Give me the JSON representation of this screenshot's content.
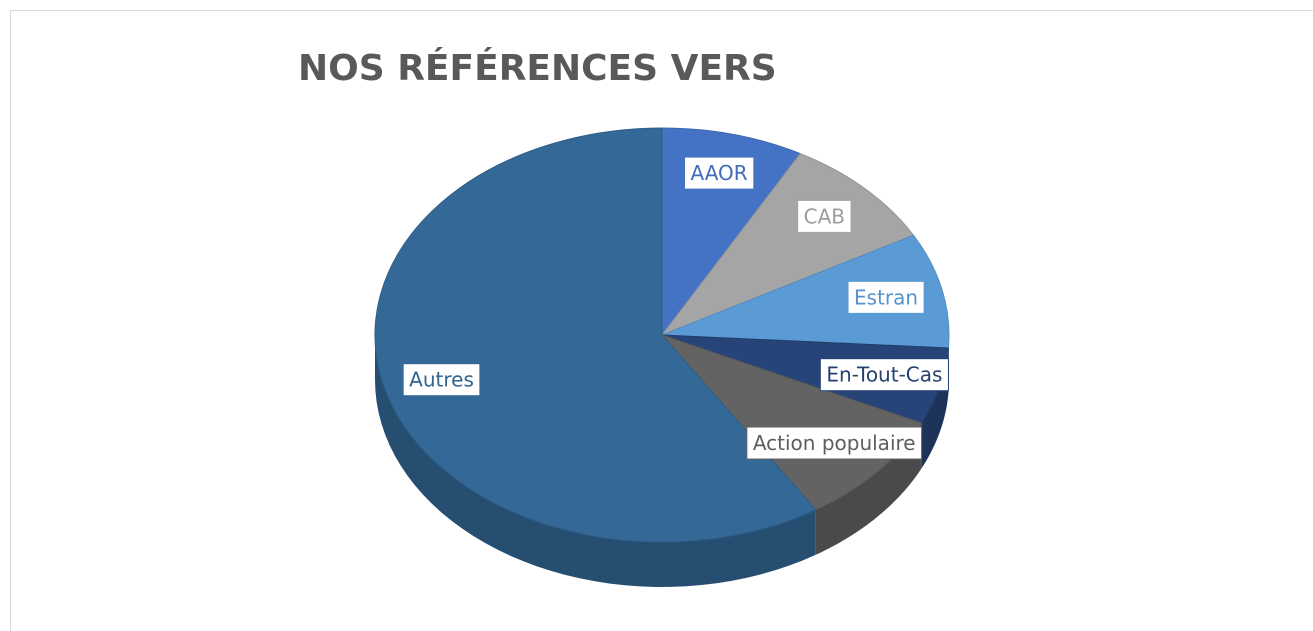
{
  "chart_data": {
    "type": "pie",
    "title": "NOS RÉFÉRENCES VERS",
    "categories": [
      "AAOR",
      "CAB",
      "Estran",
      "En-Tout-Cas",
      "Action populaire",
      "Autres"
    ],
    "values": [
      8,
      9,
      9,
      6,
      9,
      59
    ],
    "colors": [
      "#4472c4",
      "#a5a5a5",
      "#5b9bd5",
      "#264478",
      "#636363",
      "#336897"
    ]
  }
}
